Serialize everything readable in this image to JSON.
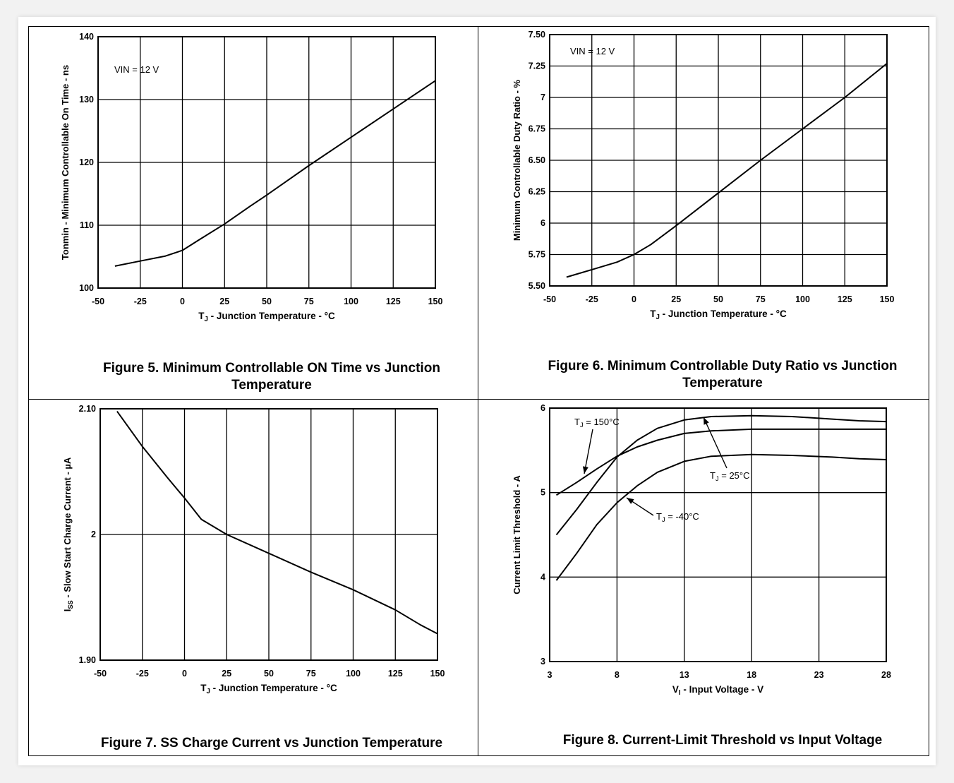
{
  "captions": {
    "fig5": "Figure 5. Minimum Controllable ON Time vs Junction Temperature",
    "fig6": "Figure 6. Minimum Controllable Duty Ratio vs Junction Temperature",
    "fig7": "Figure 7. SS Charge Current vs Junction Temperature",
    "fig8": "Figure 8. Current-Limit Threshold vs Input Voltage"
  },
  "chart_data": [
    {
      "id": "fig5",
      "type": "line",
      "xlabel": "TJ - Junction Temperature - °C",
      "ylabel": "Tonmin - Minimum Controllable On Time - ns",
      "xlim": [
        -50,
        150
      ],
      "ylim": [
        100,
        140
      ],
      "xticks": [
        "-50",
        "-25",
        "0",
        "25",
        "50",
        "75",
        "100",
        "125",
        "150"
      ],
      "yticks": [
        "100",
        "110",
        "120",
        "130",
        "140"
      ],
      "grid": true,
      "annotations": [
        "VIN = 12 V"
      ],
      "series": [
        {
          "x": [
            -40,
            -25,
            -10,
            0,
            10,
            25,
            40,
            50,
            75,
            100,
            125,
            150
          ],
          "y": [
            103.5,
            104.3,
            105.1,
            106,
            107.7,
            110.2,
            113,
            114.8,
            119.5,
            124,
            128.5,
            133
          ]
        }
      ]
    },
    {
      "id": "fig6",
      "type": "line",
      "xlabel": "TJ - Junction Temperature - °C",
      "ylabel": "Minimum Controllable Duty Ratio - %",
      "xlim": [
        -50,
        150
      ],
      "ylim": [
        5.5,
        7.5
      ],
      "xticks": [
        "-50",
        "-25",
        "0",
        "25",
        "50",
        "75",
        "100",
        "125",
        "150"
      ],
      "yticks": [
        "5.50",
        "5.75",
        "6",
        "6.25",
        "6.50",
        "6.75",
        "7",
        "7.25",
        "7.50"
      ],
      "grid": true,
      "annotations": [
        "VIN = 12 V"
      ],
      "series": [
        {
          "x": [
            -40,
            -25,
            -10,
            0,
            10,
            25,
            50,
            75,
            100,
            125,
            150
          ],
          "y": [
            5.57,
            5.63,
            5.69,
            5.75,
            5.83,
            5.98,
            6.24,
            6.5,
            6.75,
            7.0,
            7.27
          ]
        }
      ]
    },
    {
      "id": "fig7",
      "type": "line",
      "xlabel": "TJ - Junction Temperature - °C",
      "ylabel": "ISS - Slow Start Charge Current - µA",
      "xlim": [
        -50,
        150
      ],
      "ylim": [
        1.9,
        2.1
      ],
      "xticks": [
        "-50",
        "-25",
        "0",
        "25",
        "50",
        "75",
        "100",
        "125",
        "150"
      ],
      "yticks": [
        "1.90",
        "2",
        "2.10"
      ],
      "grid": true,
      "series": [
        {
          "x": [
            -40,
            -25,
            -10,
            0,
            10,
            25,
            50,
            75,
            100,
            125,
            140,
            150
          ],
          "y": [
            2.098,
            2.07,
            2.045,
            2.029,
            2.012,
            2.0,
            1.985,
            1.97,
            1.956,
            1.94,
            1.928,
            1.921
          ]
        }
      ]
    },
    {
      "id": "fig8",
      "type": "line",
      "xlabel": "VI - Input Voltage - V",
      "ylabel": "Current Limit Threshold - A",
      "xlim": [
        3,
        28
      ],
      "ylim": [
        3,
        6
      ],
      "xticks": [
        "3",
        "8",
        "13",
        "18",
        "23",
        "28"
      ],
      "yticks": [
        "3",
        "4",
        "5",
        "6"
      ],
      "grid": true,
      "series": [
        {
          "name": "TJ = 150°C",
          "x": [
            3.5,
            5,
            6.5,
            8,
            9.5,
            11,
            13,
            15,
            18,
            21,
            24,
            28
          ],
          "y": [
            4.97,
            5.12,
            5.28,
            5.43,
            5.54,
            5.62,
            5.7,
            5.73,
            5.75,
            5.75,
            5.75,
            5.75
          ]
        },
        {
          "name": "TJ = 25°C",
          "x": [
            3.5,
            5,
            6.5,
            8,
            9.5,
            11,
            13,
            15,
            18,
            21,
            24,
            26,
            28
          ],
          "y": [
            4.5,
            4.8,
            5.12,
            5.42,
            5.62,
            5.76,
            5.86,
            5.9,
            5.91,
            5.9,
            5.87,
            5.85,
            5.84
          ]
        },
        {
          "name": "TJ = -40°C",
          "x": [
            3.5,
            5,
            6.5,
            8,
            9.5,
            11,
            13,
            15,
            18,
            21,
            24,
            26,
            28
          ],
          "y": [
            3.96,
            4.28,
            4.62,
            4.88,
            5.08,
            5.24,
            5.37,
            5.43,
            5.45,
            5.44,
            5.42,
            5.4,
            5.39
          ]
        }
      ],
      "annotations": [
        "TJ = 150°C",
        "TJ = 25°C",
        "TJ = -40°C"
      ]
    }
  ]
}
